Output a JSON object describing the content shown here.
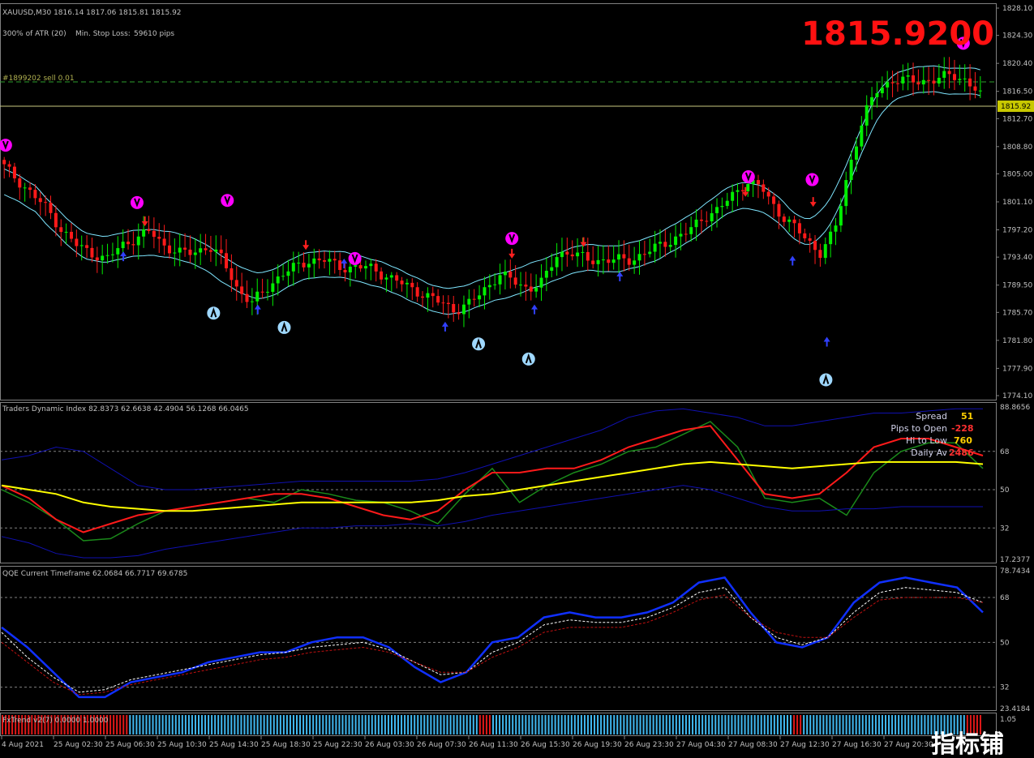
{
  "main": {
    "header": "XAUUSD,M30  1816.14 1817.06 1815.81 1815.92",
    "atr_label": "300% of ATR (20)",
    "stop_loss_label": "Min. Stop Loss:",
    "stop_loss_value": "59610 pips",
    "order_label": "#1899202 sell 0.01",
    "big_price": "1815.9200",
    "current_price_tag": "1815.92",
    "y_ticks": [
      "1828.10",
      "1824.30",
      "1820.40",
      "1816.50",
      "1812.70",
      "1808.80",
      "1805.00",
      "1801.10",
      "1797.20",
      "1793.40",
      "1789.50",
      "1785.70",
      "1781.80",
      "1777.90",
      "1774.10"
    ]
  },
  "tdi": {
    "header": "Traders Dynamic Index 82.8373 62.6638 42.4904 56.1268 66.0465",
    "y_ticks": [
      "88.8656",
      "68",
      "50",
      "32",
      "17.2377"
    ],
    "stats": [
      {
        "label": "Spread",
        "value": "51",
        "color": "yellow"
      },
      {
        "label": "Pips to Open",
        "value": "-228",
        "color": "red"
      },
      {
        "label": "Hi to Low",
        "value": "760",
        "color": "yellow"
      },
      {
        "label": "Daily Av",
        "value": "2486",
        "color": "red"
      }
    ]
  },
  "qqe": {
    "header": "QQE Current Timeframe 62.0684 66.7717 69.6785",
    "y_ticks": [
      "78.7434",
      "68",
      "50",
      "32",
      "23.4184"
    ]
  },
  "fxtrend": {
    "header": "FxTrend v2(7) 0.0000 1.0000",
    "y_tick": "1.05"
  },
  "time_axis": [
    "4 Aug 2021",
    "25 Aug 02:30",
    "25 Aug 06:30",
    "25 Aug 10:30",
    "25 Aug 14:30",
    "25 Aug 18:30",
    "25 Aug 22:30",
    "26 Aug 03:30",
    "26 Aug 07:30",
    "26 Aug 11:30",
    "26 Aug 15:30",
    "26 Aug 19:30",
    "26 Aug 23:30",
    "27 Aug 04:30",
    "27 Aug 08:30",
    "27 Aug 12:30",
    "27 Aug 16:30",
    "27 Aug 20:30"
  ],
  "watermark": "指标铺",
  "colors": {
    "bull": "#00ee00",
    "bear": "#ff1a1a",
    "band": "#7fe6ff",
    "bg": "#000000",
    "grid": "#808080",
    "tdi_green": "#1a8a1a",
    "tdi_red": "#ff1a1a",
    "tdi_yellow": "#ffff00",
    "tdi_blue": "#1010b0",
    "qqe_blue": "#1030ff"
  },
  "chart_data": [
    {
      "type": "candlestick",
      "title": "XAUUSD,M30",
      "ylim": [
        1774.1,
        1828.1
      ],
      "close_path": [
        1806,
        1804,
        1802,
        1800,
        1797,
        1795,
        1794,
        1793,
        1795,
        1796,
        1797,
        1795,
        1794,
        1794,
        1795,
        1793,
        1789,
        1787,
        1789,
        1791,
        1792,
        1793,
        1793,
        1792,
        1792,
        1792,
        1791,
        1790,
        1789,
        1788,
        1787,
        1786,
        1787,
        1789,
        1791,
        1790,
        1789,
        1790,
        1794,
        1794,
        1793,
        1793,
        1793,
        1793,
        1794,
        1795,
        1796,
        1797,
        1799,
        1800,
        1802,
        1804,
        1803,
        1800,
        1798,
        1796,
        1794,
        1797,
        1806,
        1813,
        1817,
        1818,
        1818,
        1818,
        1818,
        1819,
        1818,
        1815.92
      ],
      "current_price": 1815.92,
      "order_price": 1819.6
    },
    {
      "type": "line",
      "title": "Traders Dynamic Index",
      "ylim": [
        17.2377,
        88.8656
      ],
      "series": [
        {
          "values": [
            50,
            44,
            36,
            26,
            27,
            34,
            40,
            42,
            44,
            46,
            44,
            50,
            48,
            45,
            44,
            40,
            34,
            48,
            60,
            44,
            52,
            58,
            62,
            68,
            70,
            76,
            82,
            70,
            46,
            44,
            46,
            38,
            58,
            68,
            72,
            72,
            60
          ]
        },
        {
          "values": [
            52,
            46,
            36,
            30,
            34,
            38,
            40,
            42,
            44,
            46,
            48,
            48,
            46,
            42,
            38,
            36,
            40,
            50,
            58,
            58,
            60,
            60,
            64,
            70,
            74,
            78,
            80,
            64,
            48,
            46,
            48,
            58,
            70,
            74,
            74,
            70,
            66
          ]
        },
        {
          "values": [
            52,
            50,
            48,
            44,
            42,
            41,
            40,
            40,
            41,
            42,
            43,
            44,
            44,
            44,
            44,
            44,
            45,
            47,
            48,
            50,
            52,
            54,
            56,
            58,
            60,
            62,
            63,
            62,
            61,
            60,
            61,
            62,
            63,
            63,
            63,
            63,
            62
          ]
        },
        {
          "values": [
            64,
            66,
            70,
            68,
            60,
            52,
            50,
            50,
            51,
            52,
            53,
            54,
            54,
            54,
            54,
            54,
            55,
            58,
            62,
            66,
            70,
            74,
            78,
            84,
            87,
            88,
            86,
            84,
            80,
            80,
            82,
            84,
            86,
            86,
            87,
            88,
            88
          ]
        },
        {
          "values": [
            28,
            25,
            20,
            18,
            18,
            19,
            22,
            24,
            26,
            28,
            30,
            32,
            32,
            33,
            33,
            34,
            33,
            35,
            38,
            40,
            42,
            44,
            46,
            48,
            50,
            52,
            50,
            46,
            42,
            40,
            40,
            41,
            41,
            42,
            42,
            42,
            42
          ]
        }
      ]
    },
    {
      "type": "line",
      "title": "QQE Current Timeframe",
      "ylim": [
        23.4184,
        78.7434
      ],
      "series": [
        {
          "values": [
            56,
            48,
            38,
            28,
            28,
            34,
            36,
            38,
            42,
            44,
            46,
            46,
            50,
            52,
            52,
            48,
            40,
            34,
            38,
            50,
            52,
            60,
            62,
            60,
            60,
            62,
            66,
            74,
            76,
            62,
            50,
            48,
            52,
            66,
            74,
            76,
            74,
            72,
            62
          ]
        },
        {
          "values": [
            54,
            44,
            36,
            30,
            31,
            35,
            37,
            39,
            41,
            43,
            45,
            46,
            48,
            49,
            50,
            47,
            42,
            37,
            38,
            46,
            50,
            57,
            59,
            58,
            58,
            60,
            64,
            70,
            72,
            60,
            52,
            49,
            52,
            62,
            70,
            72,
            71,
            70,
            66
          ]
        },
        {
          "values": [
            50,
            42,
            34,
            29,
            30,
            33,
            35,
            37,
            39,
            41,
            43,
            44,
            46,
            47,
            48,
            46,
            42,
            38,
            38,
            44,
            48,
            54,
            56,
            56,
            56,
            58,
            62,
            67,
            69,
            60,
            54,
            52,
            52,
            60,
            67,
            68,
            68,
            68,
            66
          ]
        }
      ]
    }
  ]
}
